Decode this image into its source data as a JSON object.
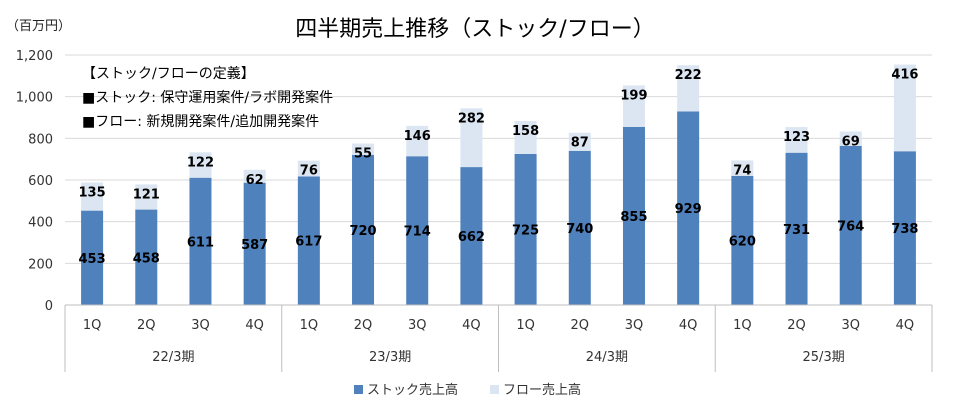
{
  "chart_data": {
    "type": "bar",
    "stacked": true,
    "title": "四半期売上推移（ストック/フロー）",
    "unit_label": "（百万円）",
    "categories": [
      "1Q",
      "2Q",
      "3Q",
      "4Q",
      "1Q",
      "2Q",
      "3Q",
      "4Q",
      "1Q",
      "2Q",
      "3Q",
      "4Q",
      "1Q",
      "2Q",
      "3Q",
      "4Q"
    ],
    "groups": [
      {
        "label": "22/3期",
        "count": 4
      },
      {
        "label": "23/3期",
        "count": 4
      },
      {
        "label": "24/3期",
        "count": 4
      },
      {
        "label": "25/3期",
        "count": 4
      }
    ],
    "series": [
      {
        "name": "ストック売上高",
        "color": "#4f81bd",
        "values": [
          453,
          458,
          611,
          587,
          617,
          720,
          714,
          662,
          725,
          740,
          855,
          929,
          620,
          731,
          764,
          738
        ]
      },
      {
        "name": "フロー売上高",
        "color": "#dce6f2",
        "values": [
          135,
          121,
          122,
          62,
          76,
          55,
          146,
          282,
          158,
          87,
          199,
          222,
          74,
          123,
          69,
          416
        ]
      }
    ],
    "ylim": [
      0,
      1200
    ],
    "yticks": [
      "0",
      "200",
      "400",
      "600",
      "800",
      "1,000",
      "1,200"
    ],
    "ytick_values": [
      0,
      200,
      400,
      600,
      800,
      1000,
      1200
    ],
    "grid": true,
    "legend_position": "bottom",
    "annotation": {
      "lines": [
        "【ストック/フローの定義】",
        "■ストック: 保守運用案件/ラボ開発案件",
        "■フロー: 新規開発案件/追加開発案件"
      ]
    }
  }
}
